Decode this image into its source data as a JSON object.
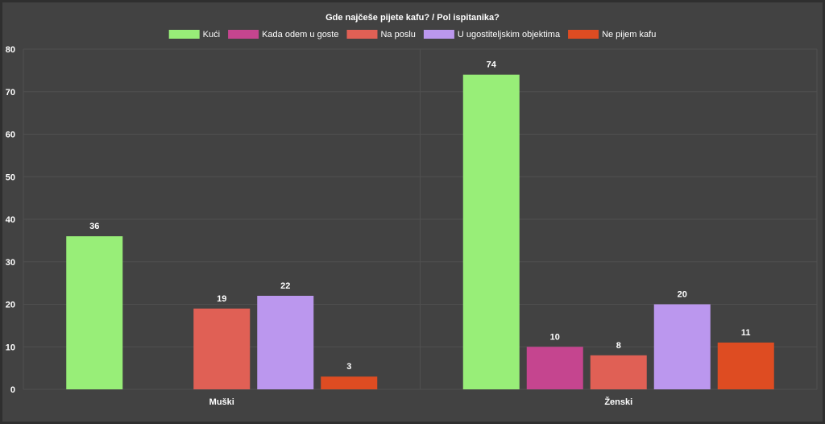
{
  "chart_data": {
    "type": "bar",
    "title": "Gde najčeše pijete kafu? / Pol ispitanika?",
    "categories": [
      "Muški",
      "Ženski"
    ],
    "series": [
      {
        "name": "Kući",
        "color": "#98ee78",
        "values": [
          36,
          74
        ]
      },
      {
        "name": "Kada odem u goste",
        "color": "#c5458f",
        "values": [
          0,
          10
        ]
      },
      {
        "name": "Na poslu",
        "color": "#e06055",
        "values": [
          19,
          8
        ]
      },
      {
        "name": "U ugostiteljskim objektima",
        "color": "#bb97ee",
        "values": [
          22,
          20
        ]
      },
      {
        "name": "Ne pijem kafu",
        "color": "#de4c22",
        "values": [
          3,
          11
        ]
      }
    ],
    "ylim": [
      0,
      80
    ],
    "yticks": [
      "0",
      "10",
      "20",
      "30",
      "40",
      "50",
      "60",
      "70",
      "80"
    ],
    "grid": true,
    "legend_position": "top-center"
  }
}
